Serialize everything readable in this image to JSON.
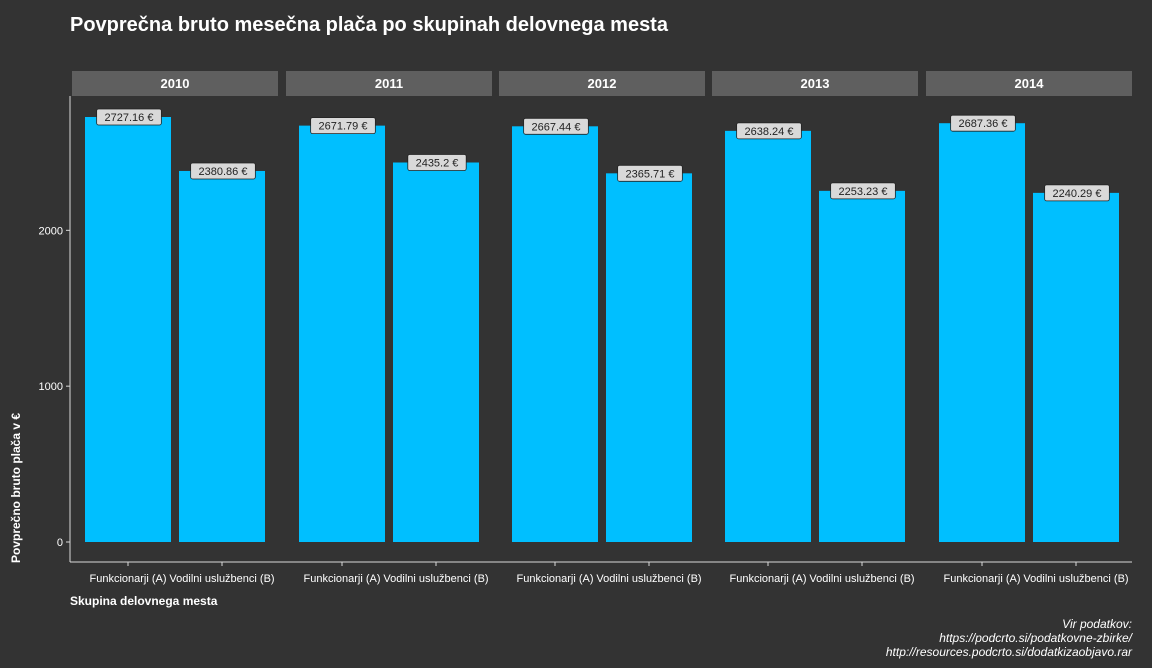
{
  "chart_data": {
    "type": "bar",
    "title": "Povprečna bruto mesečna plača po skupinah delovnega mesta",
    "xlabel": "Skupina delovnega mesta",
    "ylabel": "Povprečno bruto plača v €",
    "facets": [
      "2010",
      "2011",
      "2012",
      "2013",
      "2014"
    ],
    "categories": [
      "Funkcionarji (A)",
      "Vodilni uslužbenci (B)"
    ],
    "values": [
      [
        2727.16,
        2380.86
      ],
      [
        2671.79,
        2435.2
      ],
      [
        2667.44,
        2365.71
      ],
      [
        2638.24,
        2253.23
      ],
      [
        2687.36,
        2240.29
      ]
    ],
    "value_labels": [
      [
        "2727.16 €",
        "2380.86 €"
      ],
      [
        "2671.79 €",
        "2435.2 €"
      ],
      [
        "2667.44 €",
        "2365.71 €"
      ],
      [
        "2638.24 €",
        "2253.23 €"
      ],
      [
        "2687.36 €",
        "2240.29 €"
      ]
    ],
    "yticks": [
      0,
      1000,
      2000
    ],
    "ylim": [
      0,
      2730
    ],
    "grid": false,
    "bar_color": "#00BFFF",
    "strip_color": "#5f5f5f",
    "background_color": "#333333",
    "label_fill": "#d9d9d9"
  },
  "caption": {
    "line1": "Vir podatkov:",
    "line2": "https://podcrto.si/podatkovne-zbirke/",
    "line3": "http://resources.podcrto.si/dodatkizaobjavo.rar"
  }
}
